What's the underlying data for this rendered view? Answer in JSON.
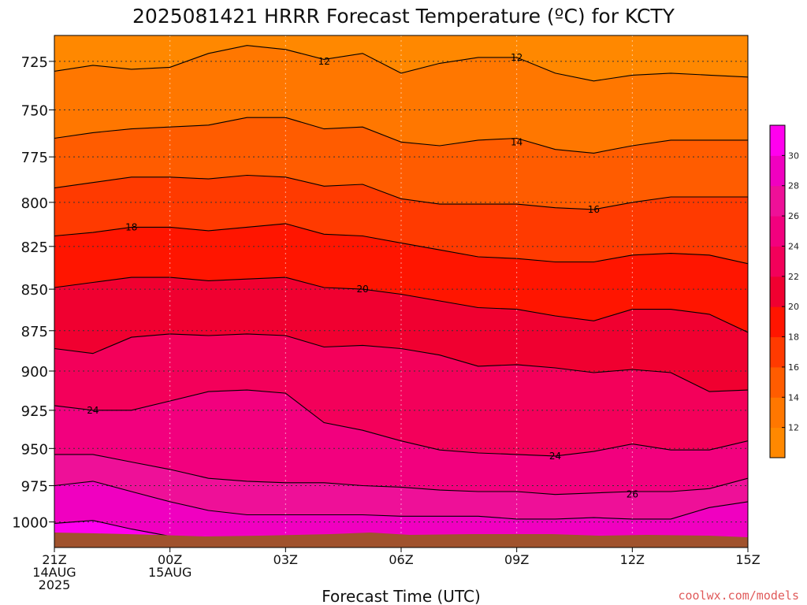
{
  "chart_data": {
    "type": "heatmap",
    "title": "2025081421 HRRR Forecast Temperature (ºC) for KCTY",
    "xlabel": "Forecast Time (UTC)",
    "ylabel": "",
    "x_ticks": [
      {
        "label": "21Z",
        "sub1": "14AUG",
        "sub2": "2025",
        "hours": 0
      },
      {
        "label": "00Z",
        "sub1": "15AUG",
        "sub2": "",
        "hours": 3
      },
      {
        "label": "03Z",
        "sub1": "",
        "sub2": "",
        "hours": 6
      },
      {
        "label": "06Z",
        "sub1": "",
        "sub2": "",
        "hours": 9
      },
      {
        "label": "09Z",
        "sub1": "",
        "sub2": "",
        "hours": 12
      },
      {
        "label": "12Z",
        "sub1": "",
        "sub2": "",
        "hours": 15
      },
      {
        "label": "15Z",
        "sub1": "",
        "sub2": "",
        "hours": 18
      }
    ],
    "xlim_hours": [
      0,
      18
    ],
    "y_ticks": [
      725,
      750,
      775,
      800,
      825,
      850,
      875,
      900,
      925,
      950,
      975,
      1000
    ],
    "ylim_hPa": [
      712,
      1018
    ],
    "y_scale": "log",
    "grid": true,
    "colorbar": {
      "levels": [
        10,
        12,
        14,
        16,
        18,
        20,
        22,
        24,
        26,
        28,
        30,
        32
      ],
      "tick_labels": [
        "12",
        "14",
        "16",
        "18",
        "20",
        "22",
        "24",
        "26",
        "28",
        "30"
      ],
      "colors": [
        "#ff8800",
        "#ff7700",
        "#ff5c00",
        "#ff3a00",
        "#ff1500",
        "#f00030",
        "#f3005a",
        "#f2007e",
        "#ee1098",
        "#f000c0",
        "#ff00ee"
      ]
    },
    "isotherms": [
      {
        "level": 12,
        "points": [
          [
            0,
            730
          ],
          [
            1,
            727
          ],
          [
            2,
            729
          ],
          [
            3,
            728
          ],
          [
            4,
            721
          ],
          [
            5,
            717
          ],
          [
            6,
            719
          ],
          [
            7,
            724
          ],
          [
            8,
            721
          ],
          [
            9,
            731
          ],
          [
            10,
            726
          ],
          [
            11,
            723
          ],
          [
            12,
            723
          ],
          [
            13,
            731
          ],
          [
            14,
            735
          ],
          [
            15,
            732
          ],
          [
            16,
            731
          ],
          [
            17,
            732
          ],
          [
            18,
            733
          ]
        ]
      },
      {
        "level": 14,
        "points": [
          [
            0,
            765
          ],
          [
            1,
            762
          ],
          [
            2,
            760
          ],
          [
            3,
            759
          ],
          [
            4,
            758
          ],
          [
            5,
            754
          ],
          [
            6,
            754
          ],
          [
            7,
            760
          ],
          [
            8,
            759
          ],
          [
            9,
            767
          ],
          [
            10,
            769
          ],
          [
            11,
            766
          ],
          [
            12,
            765
          ],
          [
            13,
            771
          ],
          [
            14,
            773
          ],
          [
            15,
            769
          ],
          [
            16,
            766
          ],
          [
            17,
            766
          ],
          [
            18,
            766
          ]
        ]
      },
      {
        "level": 16,
        "points": [
          [
            0,
            792
          ],
          [
            1,
            789
          ],
          [
            2,
            786
          ],
          [
            3,
            786
          ],
          [
            4,
            787
          ],
          [
            5,
            785
          ],
          [
            6,
            786
          ],
          [
            7,
            791
          ],
          [
            8,
            790
          ],
          [
            9,
            798
          ],
          [
            10,
            801
          ],
          [
            11,
            801
          ],
          [
            12,
            801
          ],
          [
            13,
            803
          ],
          [
            14,
            804
          ],
          [
            15,
            800
          ],
          [
            16,
            797
          ],
          [
            17,
            797
          ],
          [
            18,
            797
          ]
        ]
      },
      {
        "level": 18,
        "points": [
          [
            0,
            819
          ],
          [
            1,
            817
          ],
          [
            2,
            814
          ],
          [
            3,
            814
          ],
          [
            4,
            816
          ],
          [
            5,
            814
          ],
          [
            6,
            812
          ],
          [
            7,
            818
          ],
          [
            8,
            819
          ],
          [
            9,
            823
          ],
          [
            10,
            827
          ],
          [
            11,
            831
          ],
          [
            12,
            832
          ],
          [
            13,
            834
          ],
          [
            14,
            834
          ],
          [
            15,
            830
          ],
          [
            16,
            829
          ],
          [
            17,
            830
          ],
          [
            18,
            835
          ]
        ]
      },
      {
        "level": 20,
        "points": [
          [
            0,
            849
          ],
          [
            1,
            846
          ],
          [
            2,
            843
          ],
          [
            3,
            843
          ],
          [
            4,
            845
          ],
          [
            5,
            844
          ],
          [
            6,
            843
          ],
          [
            7,
            849
          ],
          [
            8,
            850
          ],
          [
            9,
            853
          ],
          [
            10,
            857
          ],
          [
            11,
            861
          ],
          [
            12,
            862
          ],
          [
            13,
            866
          ],
          [
            14,
            869
          ],
          [
            15,
            862
          ],
          [
            16,
            862
          ],
          [
            17,
            865
          ],
          [
            18,
            876
          ]
        ]
      },
      {
        "level": 22,
        "points": [
          [
            0,
            886
          ],
          [
            1,
            889
          ],
          [
            2,
            879
          ],
          [
            3,
            877
          ],
          [
            4,
            878
          ],
          [
            5,
            877
          ],
          [
            6,
            878
          ],
          [
            7,
            885
          ],
          [
            8,
            884
          ],
          [
            9,
            886
          ],
          [
            10,
            890
          ],
          [
            11,
            897
          ],
          [
            12,
            896
          ],
          [
            13,
            898
          ],
          [
            14,
            901
          ],
          [
            15,
            899
          ],
          [
            16,
            901
          ],
          [
            17,
            913
          ],
          [
            18,
            912
          ]
        ]
      },
      {
        "level": 24,
        "points": [
          [
            0,
            922
          ],
          [
            1,
            925
          ],
          [
            2,
            925
          ],
          [
            3,
            919
          ],
          [
            4,
            913
          ],
          [
            5,
            912
          ],
          [
            6,
            914
          ],
          [
            7,
            933
          ],
          [
            8,
            938
          ],
          [
            9,
            945
          ],
          [
            10,
            951
          ],
          [
            11,
            953
          ],
          [
            12,
            954
          ],
          [
            13,
            955
          ],
          [
            14,
            952
          ],
          [
            15,
            947
          ],
          [
            16,
            951
          ],
          [
            17,
            951
          ],
          [
            18,
            945
          ]
        ]
      },
      {
        "level": 26,
        "points": [
          [
            0,
            954
          ],
          [
            1,
            954
          ],
          [
            2,
            959
          ],
          [
            3,
            964
          ],
          [
            4,
            970
          ],
          [
            5,
            972
          ],
          [
            6,
            973
          ],
          [
            7,
            973
          ],
          [
            8,
            975
          ],
          [
            9,
            976
          ],
          [
            10,
            978
          ],
          [
            11,
            979
          ],
          [
            12,
            979
          ],
          [
            13,
            981
          ],
          [
            14,
            980
          ],
          [
            15,
            979
          ],
          [
            16,
            979
          ],
          [
            17,
            977
          ],
          [
            18,
            970
          ]
        ]
      },
      {
        "level": 28,
        "points": [
          [
            0,
            975
          ],
          [
            1,
            972
          ],
          [
            2,
            979
          ],
          [
            3,
            986
          ],
          [
            4,
            992
          ],
          [
            5,
            995
          ],
          [
            6,
            995
          ],
          [
            7,
            995
          ],
          [
            8,
            995
          ],
          [
            9,
            996
          ],
          [
            10,
            996
          ],
          [
            11,
            996
          ],
          [
            12,
            998
          ],
          [
            13,
            998
          ],
          [
            14,
            997
          ],
          [
            15,
            998
          ],
          [
            16,
            998
          ],
          [
            17,
            990
          ],
          [
            18,
            986
          ]
        ]
      },
      {
        "level": 30,
        "points": [
          [
            0,
            1001
          ],
          [
            1,
            999
          ],
          [
            2,
            1005
          ],
          [
            3,
            1010
          ],
          [
            4,
            1014
          ],
          [
            5,
            1014
          ],
          [
            6,
            1014
          ],
          [
            7,
            1013
          ],
          [
            8,
            1012
          ],
          [
            9,
            1012
          ],
          [
            10,
            1011
          ],
          [
            11,
            1011
          ],
          [
            12,
            1011
          ],
          [
            13,
            1011
          ],
          [
            14,
            1011
          ],
          [
            15,
            1013
          ],
          [
            16,
            1013
          ],
          [
            17,
            1012
          ],
          [
            18,
            1011
          ]
        ]
      }
    ],
    "contour_labels": [
      {
        "text": "12",
        "hours": 7,
        "hPa": 725
      },
      {
        "text": "12",
        "hours": 12,
        "hPa": 723
      },
      {
        "text": "14",
        "hours": 12,
        "hPa": 767
      },
      {
        "text": "16",
        "hours": 14,
        "hPa": 804
      },
      {
        "text": "18",
        "hours": 2,
        "hPa": 814
      },
      {
        "text": "20",
        "hours": 8,
        "hPa": 850
      },
      {
        "text": "24",
        "hours": 1,
        "hPa": 925
      },
      {
        "text": "24",
        "hours": 13,
        "hPa": 955
      },
      {
        "text": "26",
        "hours": 15,
        "hPa": 981
      }
    ]
  },
  "credit": "coolwx.com/models"
}
